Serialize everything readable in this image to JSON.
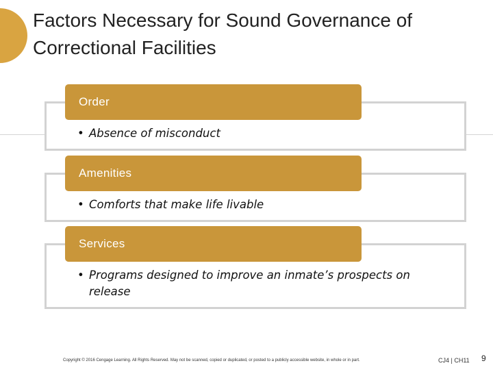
{
  "slide": {
    "title_line1": "Factors Necessary for Sound Governance of",
    "title_line2": "Correctional Facilities",
    "accent_color": "#C9963A"
  },
  "items": [
    {
      "label": "Order",
      "bullet": "Absence of misconduct"
    },
    {
      "label": "Amenities",
      "bullet": "Comforts that make life livable"
    },
    {
      "label": "Services",
      "bullet": "Programs designed to improve an inmate’s prospects on release"
    }
  ],
  "bullet_symbol": "•",
  "footer": {
    "copyright": "Copyright © 2016 Cengage Learning. All Rights Reserved. May not be scanned, copied or duplicated, or posted to a publicly accessible website, in whole or in part.",
    "course": "CJ4 | CH11",
    "page_number": "9"
  }
}
